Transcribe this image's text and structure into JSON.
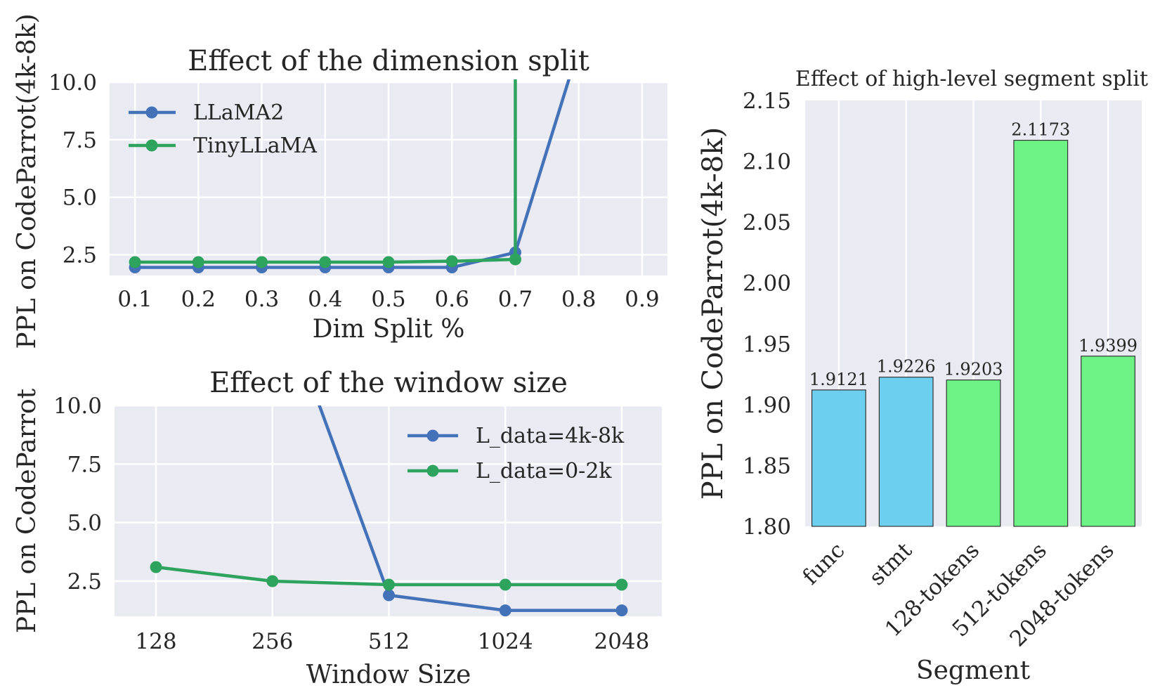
{
  "figure": {
    "left_ylabel": "PPL on CodeParrot(4k-8k)"
  },
  "chart_data": [
    {
      "id": "dim_split",
      "type": "line",
      "title": "Effect of the dimension split",
      "xlabel": "Dim Split %",
      "ylabel": "",
      "x": [
        0.1,
        0.2,
        0.3,
        0.4,
        0.5,
        0.6,
        0.7
      ],
      "xlim": [
        0.06,
        0.94
      ],
      "ylim": [
        1.6,
        10.0
      ],
      "xticks": [
        "0.1",
        "0.2",
        "0.3",
        "0.4",
        "0.5",
        "0.6",
        "0.7",
        "0.8",
        "0.9"
      ],
      "yticks": [
        "2.5",
        "5.0",
        "7.5",
        "10.0"
      ],
      "grid": true,
      "legend": "upper left",
      "series": [
        {
          "name": "LLaMA2",
          "color": "#4472b8",
          "points": [
            [
              0.1,
              1.95
            ],
            [
              0.2,
              1.95
            ],
            [
              0.3,
              1.95
            ],
            [
              0.4,
              1.95
            ],
            [
              0.5,
              1.95
            ],
            [
              0.6,
              1.95
            ],
            [
              0.7,
              2.6
            ]
          ],
          "tail": [
            [
              0.7,
              2.6
            ],
            [
              0.8,
              11.5
            ]
          ]
        },
        {
          "name": "TinyLLaMA",
          "color": "#2ea35e",
          "points": [
            [
              0.1,
              2.18
            ],
            [
              0.2,
              2.18
            ],
            [
              0.3,
              2.18
            ],
            [
              0.4,
              2.18
            ],
            [
              0.5,
              2.18
            ],
            [
              0.6,
              2.22
            ],
            [
              0.7,
              2.3
            ]
          ],
          "tail": [
            [
              0.7,
              2.3
            ],
            [
              0.7,
              11.5
            ]
          ]
        }
      ]
    },
    {
      "id": "window_size",
      "type": "line",
      "title": "Effect of the window size",
      "xlabel": "Window Size",
      "ylabel": "PPL on CodeParrot",
      "x": [
        128,
        256,
        512,
        1024,
        2048
      ],
      "xlog2": true,
      "xlim": [
        100,
        2600
      ],
      "ylim": [
        1.0,
        10.0
      ],
      "xticks": [
        "128",
        "256",
        "512",
        "1024",
        "2048"
      ],
      "yticks": [
        "2.5",
        "5.0",
        "7.5",
        "10.0"
      ],
      "grid": true,
      "legend": "upper right",
      "series": [
        {
          "name": "L_data=4k-8k",
          "color": "#4472b8",
          "points": [
            [
              512,
              1.9
            ],
            [
              1024,
              1.25
            ],
            [
              2048,
              1.25
            ]
          ],
          "head": [
            [
              330,
              10.5
            ],
            [
              512,
              1.9
            ]
          ]
        },
        {
          "name": "L_data=0-2k",
          "color": "#2ea35e",
          "points": [
            [
              128,
              3.1
            ],
            [
              256,
              2.5
            ],
            [
              512,
              2.35
            ],
            [
              1024,
              2.35
            ],
            [
              2048,
              2.35
            ]
          ]
        }
      ]
    },
    {
      "id": "segment_split",
      "type": "bar",
      "title": "Effect of high-level segment split",
      "xlabel": "Segment",
      "ylabel": "PPL on CodeParrot(4k-8k)",
      "categories": [
        "func",
        "stmt",
        "128-tokens",
        "512-tokens",
        "2048-tokens"
      ],
      "values": [
        1.9121,
        1.9226,
        1.9203,
        2.1173,
        1.9399
      ],
      "value_labels": [
        "1.9121",
        "1.9226",
        "1.9203",
        "2.1173",
        "1.9399"
      ],
      "colors": [
        "#6dcff0",
        "#6dcff0",
        "#6cf285",
        "#6cf285",
        "#6cf285"
      ],
      "ylim": [
        1.8,
        2.15
      ],
      "yticks": [
        "1.80",
        "1.85",
        "1.90",
        "1.95",
        "2.00",
        "2.05",
        "2.10",
        "2.15"
      ],
      "grid": true
    }
  ]
}
